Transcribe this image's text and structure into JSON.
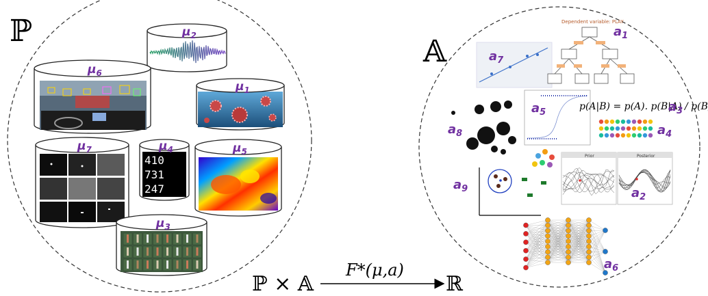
{
  "left_set": {
    "symbol": "ℙ",
    "datasets": [
      {
        "label": "μ",
        "sub": "2",
        "content": "audio-waveform",
        "colors": [
          "#2e9d6b",
          "#7a4fc4"
        ]
      },
      {
        "label": "μ",
        "sub": "6",
        "content": "driving-scene-detection",
        "colors": [
          "#3a4a5a"
        ]
      },
      {
        "label": "μ",
        "sub": "1",
        "content": "virus-particles",
        "colors": [
          "#2a6f9e",
          "#c23a3a"
        ]
      },
      {
        "label": "μ",
        "sub": "7",
        "content": "satellite-grid-dark",
        "colors": [
          "#111111"
        ]
      },
      {
        "label": "μ",
        "sub": "4",
        "content": "handwritten-digits",
        "colors": [
          "#000000"
        ]
      },
      {
        "label": "μ",
        "sub": "5",
        "content": "thermal-heatmap",
        "colors": [
          "#ffe000",
          "#ff2b00",
          "#2b00ff"
        ]
      },
      {
        "label": "μ",
        "sub": "3",
        "content": "ship-chips-grid",
        "colors": [
          "#3d5d3d",
          "#c76b4b"
        ]
      }
    ]
  },
  "right_set": {
    "symbol": "𝔸",
    "algorithms": [
      {
        "label": "a",
        "sub": "1",
        "content": "decision-tree"
      },
      {
        "label": "a",
        "sub": "7",
        "content": "linear-regression"
      },
      {
        "label": "a",
        "sub": "3",
        "content": "bayes-formula"
      },
      {
        "label": "a",
        "sub": "5",
        "content": "logistic-curve"
      },
      {
        "label": "a",
        "sub": "8",
        "content": "ink-blobs-clustering"
      },
      {
        "label": "a",
        "sub": "4",
        "content": "colored-dot-grid"
      },
      {
        "label": "a",
        "sub": "9",
        "content": "svm-scatter"
      },
      {
        "label": "a",
        "sub": "2",
        "content": "gaussian-process"
      },
      {
        "label": "a",
        "sub": "6",
        "content": "neural-network"
      }
    ],
    "bayes_formula": "p(A|B) = p(A). p(B|A) / p(B)",
    "tree_title": "Dependent variable: PLAY",
    "gp_panels": [
      "Prior",
      "Posterior"
    ]
  },
  "mapping": {
    "domain": "ℙ × 𝔸",
    "function": "F*(μ,a)",
    "codomain": "ℝ"
  }
}
